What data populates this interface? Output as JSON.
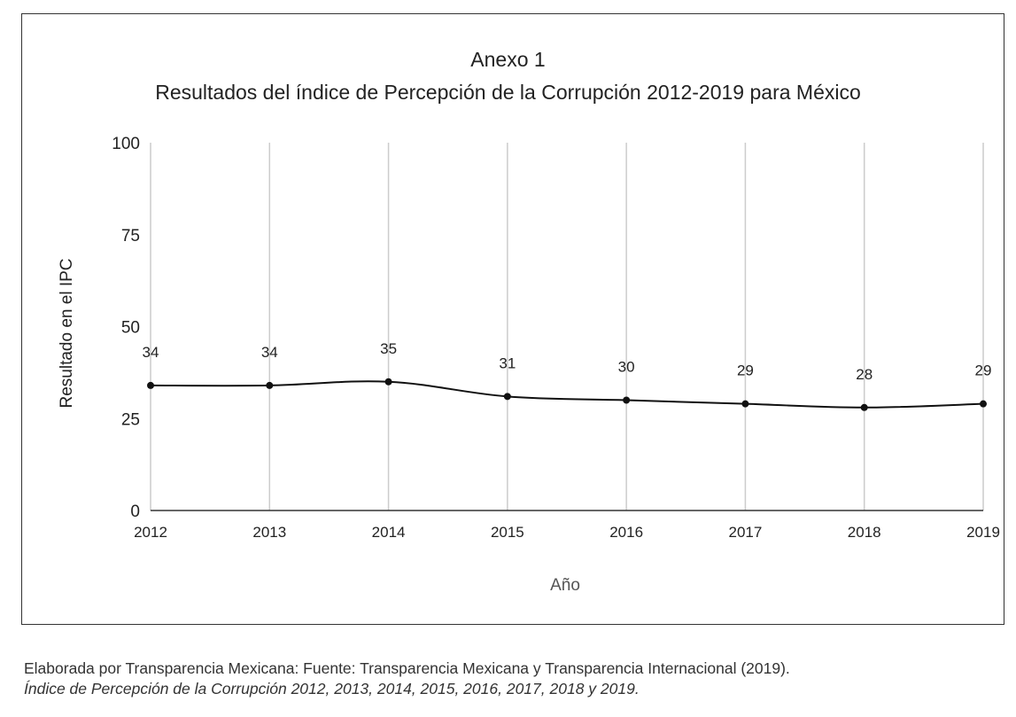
{
  "chart_data": {
    "type": "line",
    "title": "Anexo 1",
    "subtitle": "Resultados del índice de Percepción de la Corrupción 2012-2019 para México",
    "xlabel": "Año",
    "ylabel": "Resultado en el IPC",
    "categories": [
      "2012",
      "2013",
      "2014",
      "2015",
      "2016",
      "2017",
      "2018",
      "2019"
    ],
    "series": [
      {
        "values": [
          34,
          34,
          35,
          31,
          30,
          29,
          28,
          29
        ]
      }
    ],
    "ylim": [
      0,
      100
    ],
    "yticks": [
      0,
      25,
      50,
      75,
      100
    ],
    "grid": "vertical",
    "line_color": "#111111",
    "grid_color": "#cccccc"
  },
  "caption": {
    "line1": "Elaborada por Transparencia Mexicana: Fuente: Transparencia Mexicana y Transparencia Internacional (2019).",
    "line2": "Índice de Percepción de la Corrupción 2012, 2013, 2014, 2015, 2016, 2017, 2018 y 2019."
  }
}
